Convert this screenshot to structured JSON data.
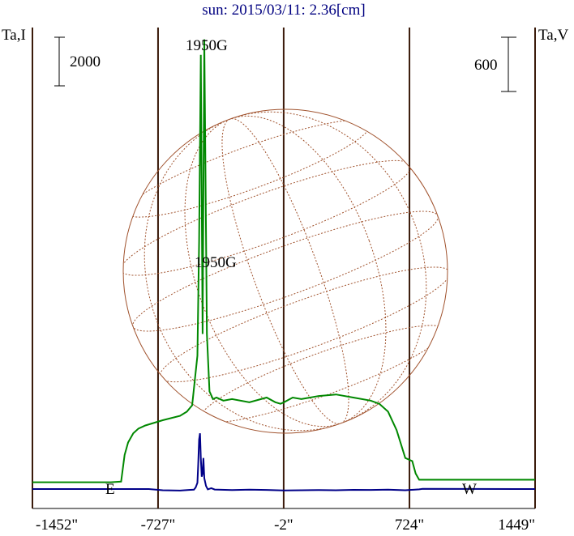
{
  "chart_data": {
    "type": "line",
    "title": "sun: 2015/03/11: 2.36[cm]",
    "left_axis_label": "Ta,I",
    "right_axis_label": "Ta,V",
    "x_ticks": [
      {
        "value": -1452,
        "label": "-1452\""
      },
      {
        "value": -727,
        "label": "-727\""
      },
      {
        "value": -2,
        "label": "-2\""
      },
      {
        "value": 724,
        "label": "724\""
      },
      {
        "value": 1449,
        "label": "1449\""
      }
    ],
    "xlim": [
      -1452,
      1449
    ],
    "vertical_lines_at": [
      -1452,
      -727,
      -2,
      724,
      1449
    ],
    "scale_bar_left_label": "2000",
    "scale_bar_right_label": "600",
    "limb_labels": {
      "east": "E",
      "west": "W"
    },
    "annotations": [
      "1950G",
      "1950G"
    ],
    "series": [
      {
        "key": "I",
        "color": "#008800",
        "x": [
          -1452,
          -1000,
          -940,
          -920,
          -900,
          -870,
          -840,
          -800,
          -700,
          -600,
          -560,
          -530,
          -500,
          -490,
          -480,
          -470,
          -460,
          -445,
          -430,
          -410,
          -390,
          -350,
          -300,
          -200,
          -100,
          -50,
          -20,
          0,
          50,
          100,
          200,
          300,
          400,
          500,
          550,
          600,
          650,
          700,
          740,
          760,
          780,
          1449
        ],
        "y": [
          220,
          220,
          240,
          1100,
          1500,
          1800,
          1950,
          2050,
          2220,
          2360,
          2500,
          2700,
          4300,
          8000,
          14000,
          5000,
          14500,
          5000,
          3150,
          2900,
          2950,
          2850,
          2900,
          2800,
          2950,
          2800,
          2750,
          2800,
          2950,
          2900,
          3000,
          3050,
          2950,
          2850,
          2750,
          2500,
          1900,
          1000,
          900,
          500,
          300,
          300
        ]
      },
      {
        "key": "V",
        "color": "#000088",
        "x": [
          -1452,
          -780,
          -700,
          -600,
          -550,
          -520,
          -510,
          -500,
          -495,
          -490,
          -485,
          -480,
          -475,
          -470,
          -465,
          -460,
          -450,
          -440,
          -420,
          -400,
          -300,
          -200,
          -100,
          0,
          100,
          200,
          300,
          400,
          500,
          600,
          700,
          780,
          800,
          1449
        ],
        "y": [
          0,
          0,
          -40,
          -50,
          -30,
          -20,
          50,
          200,
          800,
          1600,
          1800,
          1000,
          400,
          500,
          1000,
          350,
          100,
          -10,
          30,
          -15,
          -35,
          -20,
          -30,
          -45,
          -40,
          -35,
          -40,
          -25,
          -30,
          -20,
          -40,
          -10,
          5,
          0
        ]
      }
    ]
  }
}
